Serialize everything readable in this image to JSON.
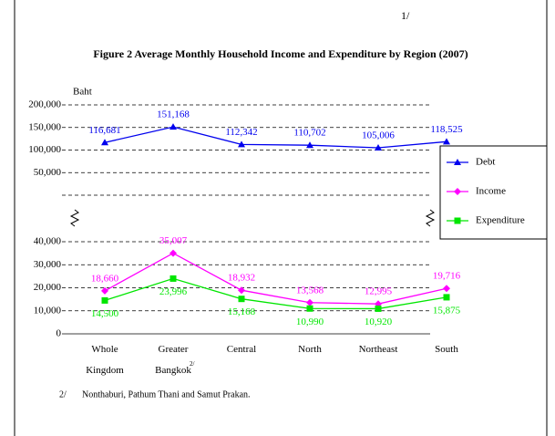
{
  "page_mark": "1/",
  "chart_data": {
    "type": "line",
    "title": "Figure  2   Average Monthly Household Income and Expenditure by Region (2007)",
    "y_label": "Baht",
    "categories": [
      "Whole Kingdom",
      "Greater Bangkok",
      "Central",
      "North",
      "Northeast",
      "South"
    ],
    "category_note": {
      "index": 1,
      "mark": "2/"
    },
    "axis_break": true,
    "grid": true,
    "legend": "right",
    "ylim": [
      0,
      40000
    ],
    "yticks": [
      {
        "value": 0,
        "label": "0"
      },
      {
        "value": 10000,
        "label": "10,000"
      },
      {
        "value": 20000,
        "label": "20,000"
      },
      {
        "value": 30000,
        "label": "30,000"
      },
      {
        "value": 40000,
        "label": "40,000"
      }
    ],
    "y2lim": [
      0,
      200000
    ],
    "y2ticks": [
      {
        "value": 50000,
        "label": "50,000"
      },
      {
        "value": 100000,
        "label": "100,000"
      },
      {
        "value": 150000,
        "label": "150,000"
      },
      {
        "value": 200000,
        "label": "200,000"
      }
    ],
    "series": [
      {
        "name": "Debt",
        "color": "#0000ee",
        "marker": "triangle",
        "axis": "y2",
        "values": [
          116681,
          151168,
          112342,
          110702,
          105006,
          118525
        ],
        "value_labels": [
          "116,681",
          "151,168",
          "112,342",
          "110,702",
          "105,006",
          "118,525"
        ]
      },
      {
        "name": "Income",
        "color": "#ff00ff",
        "marker": "diamond",
        "values": [
          18660,
          35007,
          18932,
          13568,
          12995,
          19716
        ],
        "value_labels": [
          "18,660",
          "35,007",
          "18,932",
          "13,568",
          "12,995",
          "19,716"
        ]
      },
      {
        "name": "Expenditure",
        "color": "#00e600",
        "marker": "square",
        "values": [
          14500,
          23996,
          15168,
          10990,
          10920,
          15875
        ],
        "value_labels": [
          "14,500",
          "23,996",
          "15,168",
          "10,990",
          "10,920",
          "15,875"
        ]
      }
    ],
    "footnote_mark": "2/",
    "footnote": "Nonthaburi, Pathum Thani and Samut Prakan."
  }
}
